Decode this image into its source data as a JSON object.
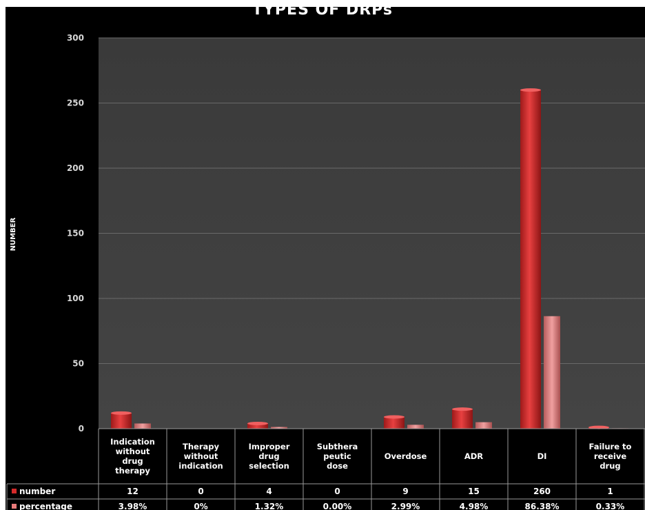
{
  "chart_data": {
    "type": "bar",
    "title": "TYPES  OF DRPs",
    "ylabel": "NUMBER",
    "xlabel": "",
    "ylim": [
      0,
      300
    ],
    "yticks": [
      0,
      50,
      100,
      150,
      200,
      250,
      300
    ],
    "grid": true,
    "legend": "data table below chart",
    "categories": [
      "Indication without drug therapy",
      "Therapy without indication",
      "Improper drug selection",
      "Subthera peutic dose",
      "Overdose",
      "ADR",
      "DI",
      "Failure to receive drug"
    ],
    "category_lines": [
      [
        "Indication",
        "without",
        "drug",
        "therapy"
      ],
      [
        "Therapy",
        "without",
        "indication"
      ],
      [
        "Improper",
        "drug",
        "selection"
      ],
      [
        "Subthera",
        "peutic",
        "dose"
      ],
      [
        "Overdose"
      ],
      [
        "ADR"
      ],
      [
        "DI"
      ],
      [
        "Failure to",
        "receive",
        "drug"
      ]
    ],
    "series": [
      {
        "name": "number",
        "values": [
          12,
          0,
          4,
          0,
          9,
          15,
          260,
          1
        ],
        "labels": [
          "12",
          "0",
          "4",
          "0",
          "9",
          "15",
          "260",
          "1"
        ],
        "color": "#d42a2a"
      },
      {
        "name": "percentage",
        "values": [
          3.98,
          0,
          1.32,
          0.0,
          2.99,
          4.98,
          86.38,
          0.33
        ],
        "labels": [
          "3.98%",
          "0%",
          "1.32%",
          "0.00%",
          "2.99%",
          "4.98%",
          "86.38%",
          "0.33%"
        ],
        "color": "#e87a7a"
      }
    ],
    "colors": {
      "background": "#000000",
      "plot_area": "#3b3b3b",
      "gridline": "#6a6a6a",
      "table_border": "#9a9a9a"
    }
  }
}
